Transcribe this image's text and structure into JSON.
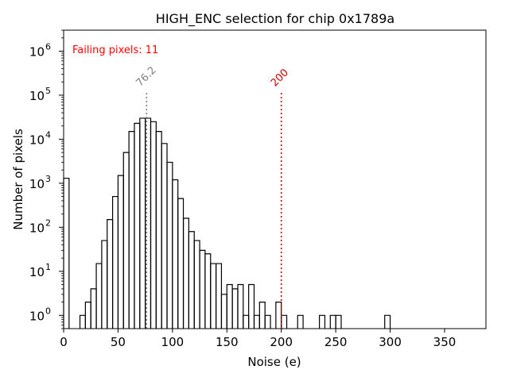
{
  "chart_data": {
    "type": "histogram",
    "title": "HIGH_ENC selection for chip 0x1789a",
    "xlabel": "Noise (e)",
    "ylabel": "Number of pixels",
    "xlim": [
      0,
      388
    ],
    "ylim": [
      0.5,
      3000000
    ],
    "yscale": "log",
    "grid": false,
    "xticks": [
      0,
      50,
      100,
      150,
      200,
      250,
      300,
      350
    ],
    "yticks": [
      {
        "value": 1,
        "base": "10",
        "exp": "0"
      },
      {
        "value": 10,
        "base": "10",
        "exp": "1"
      },
      {
        "value": 100,
        "base": "10",
        "exp": "2"
      },
      {
        "value": 1000,
        "base": "10",
        "exp": "3"
      },
      {
        "value": 10000,
        "base": "10",
        "exp": "4"
      },
      {
        "value": 100000,
        "base": "10",
        "exp": "5"
      },
      {
        "value": 1000000,
        "base": "10",
        "exp": "6"
      }
    ],
    "bin_width": 5,
    "bin_edges_start": 0,
    "counts": [
      1300,
      0,
      0,
      1,
      2,
      4,
      15,
      50,
      150,
      500,
      1500,
      5000,
      15000,
      23000,
      30000,
      30000,
      25000,
      15000,
      8000,
      3000,
      1200,
      450,
      160,
      80,
      50,
      30,
      25,
      15,
      15,
      3,
      5,
      4,
      5,
      1,
      5,
      1,
      2,
      1,
      0,
      2,
      1,
      0,
      0,
      1,
      0,
      0,
      0,
      1,
      0,
      1,
      1,
      0,
      0,
      0,
      0,
      0,
      0,
      0,
      0,
      1,
      0
    ],
    "line_color": "#000000",
    "annotation_text": "Failing pixels: 11",
    "annotation_color": "#ff0000",
    "markers": [
      {
        "x": 76.2,
        "label": "76.2",
        "color": "#808080",
        "top": 120000
      },
      {
        "x": 200,
        "label": "200",
        "color": "#cc0000",
        "top": 120000
      }
    ]
  }
}
